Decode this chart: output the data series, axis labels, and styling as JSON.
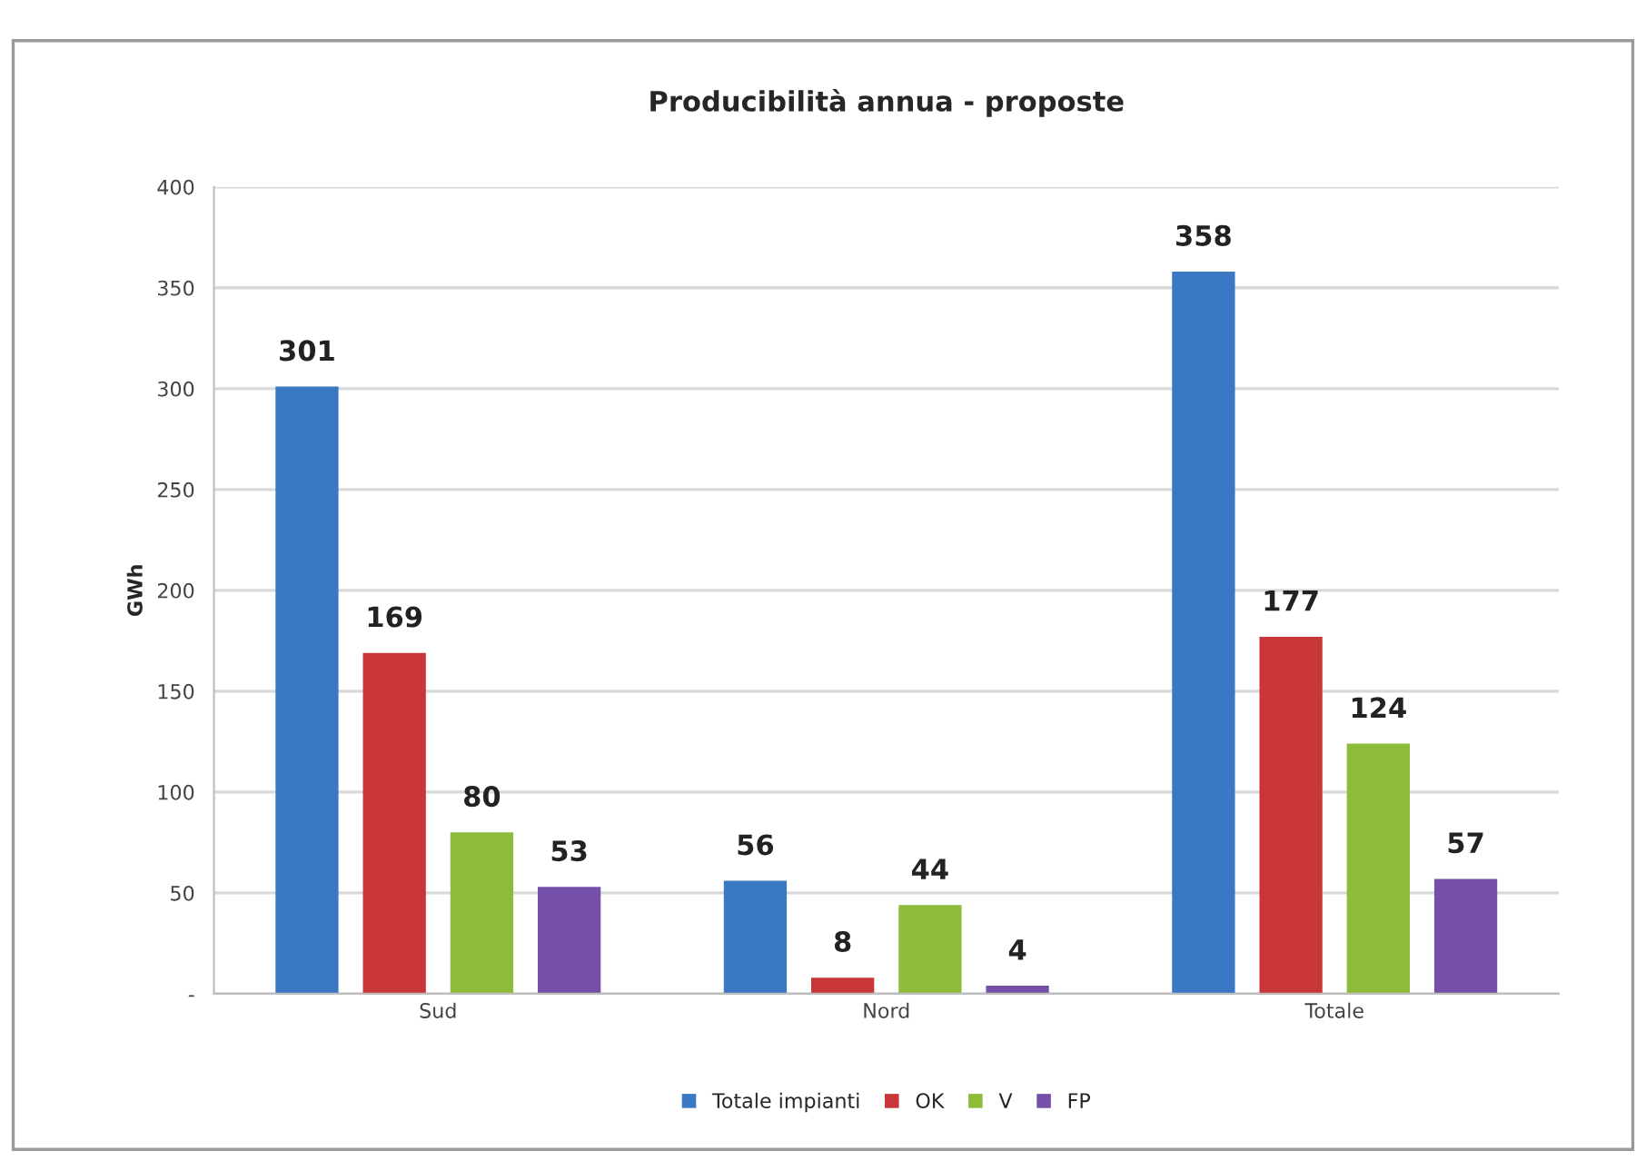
{
  "chart_data": {
    "type": "bar",
    "title": "Producibilità annua - proposte",
    "ylabel": "GWh",
    "categories": [
      "Sud",
      "Nord",
      "Totale"
    ],
    "series": [
      {
        "name": "Totale impianti",
        "color": "#3a78c4",
        "values": [
          301,
          56,
          358
        ]
      },
      {
        "name": "OK",
        "color": "#c8363a",
        "values": [
          169,
          8,
          177
        ]
      },
      {
        "name": "V",
        "color": "#8dbb3a",
        "values": [
          80,
          44,
          124
        ]
      },
      {
        "name": "FP",
        "color": "#7450a8",
        "values": [
          53,
          4,
          57
        ]
      }
    ],
    "ylim": [
      0,
      400
    ],
    "yticks": [
      {
        "value": 0,
        "label": "-"
      },
      50,
      100,
      150,
      200,
      250,
      300,
      350,
      400
    ],
    "grid": "y",
    "legend": "bottom",
    "data_labels": true
  }
}
